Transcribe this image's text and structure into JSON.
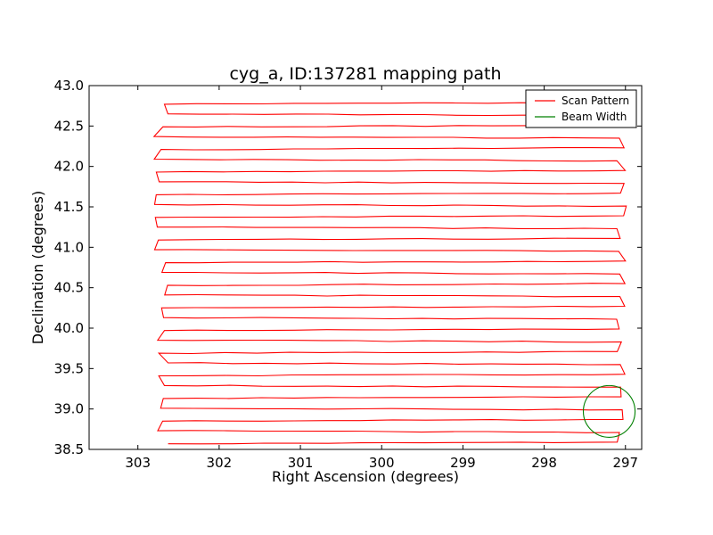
{
  "chart_data": {
    "type": "line",
    "title": "cyg_a, ID:137281 mapping path",
    "xlabel": "Right Ascension (degrees)",
    "ylabel": "Declination (degrees)",
    "xlim": [
      303.6,
      296.8
    ],
    "ylim": [
      38.5,
      43.0
    ],
    "x_inverted": true,
    "xticks": [
      303,
      302,
      301,
      300,
      299,
      298,
      297
    ],
    "xtick_labels": [
      "303",
      "302",
      "301",
      "300",
      "299",
      "298",
      "297"
    ],
    "yticks": [
      38.5,
      39.0,
      39.5,
      40.0,
      40.5,
      41.0,
      41.5,
      42.0,
      42.5,
      43.0
    ],
    "ytick_labels": [
      "38.5",
      "39.0",
      "39.5",
      "40.0",
      "40.5",
      "41.0",
      "41.5",
      "42.0",
      "42.5",
      "43.0"
    ],
    "grid": false,
    "legend_position": "top-right",
    "series": [
      {
        "name": "Scan Pattern",
        "color": "#ff0000",
        "scan_rows": {
          "dec_start": 38.57,
          "dec_step": 0.14,
          "count": 31,
          "ra_east_edge": 302.7,
          "ra_west_edge": 297.05
        },
        "x": [
          302.8,
          297.0,
          297.05,
          302.7,
          302.8,
          297.05,
          297.1,
          302.75,
          302.8,
          297.05
        ],
        "y": [
          38.57,
          38.6,
          38.71,
          38.73,
          38.85,
          38.87,
          38.99,
          39.01,
          39.13,
          39.15
        ]
      },
      {
        "name": "Beam Width",
        "color": "#008000",
        "circle_center": [
          297.2,
          38.97
        ],
        "circle_radius_deg": 0.32
      }
    ]
  }
}
